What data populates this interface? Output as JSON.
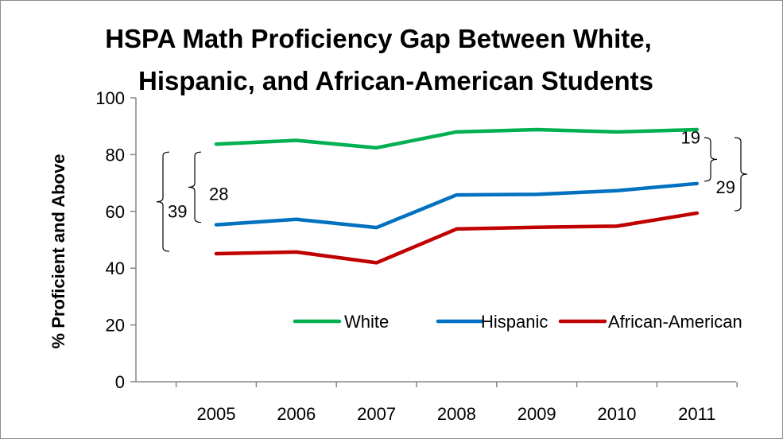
{
  "chart_data": {
    "type": "line",
    "title": "HSPA Math Proficiency Gap Between White, Hispanic, and African-American Students",
    "title_lines": [
      "HSPA Math Proficiency Gap Between White,",
      "Hispanic, and African-American Students"
    ],
    "xlabel": "",
    "ylabel": "% Proficient and Above",
    "x": [
      "2005",
      "2006",
      "2007",
      "2008",
      "2009",
      "2010",
      "2011"
    ],
    "ylim": [
      0,
      100
    ],
    "yticks": [
      0,
      20,
      40,
      60,
      80,
      100
    ],
    "grid": false,
    "legend_position": "bottom-right",
    "series": [
      {
        "name": "White",
        "color": "#00b050",
        "values": [
          83.7,
          85.0,
          82.4,
          88.0,
          88.8,
          88.0,
          88.8
        ]
      },
      {
        "name": "Hispanic",
        "color": "#0070c0",
        "values": [
          55.3,
          57.2,
          54.3,
          65.8,
          66.0,
          67.3,
          69.8
        ]
      },
      {
        "name": "African-American",
        "color": "#c00000",
        "values": [
          45.1,
          45.7,
          41.9,
          53.8,
          54.4,
          54.8,
          59.4
        ]
      }
    ],
    "annotations": [
      {
        "label": "28",
        "year": "2005",
        "from_series": "Hispanic",
        "to_series": "White"
      },
      {
        "label": "39",
        "year": "2005",
        "from_series": "African-American",
        "to_series": "White"
      },
      {
        "label": "19",
        "year": "2011",
        "from_series": "Hispanic",
        "to_series": "White"
      },
      {
        "label": "29",
        "year": "2011",
        "from_series": "African-American",
        "to_series": "White"
      }
    ]
  }
}
